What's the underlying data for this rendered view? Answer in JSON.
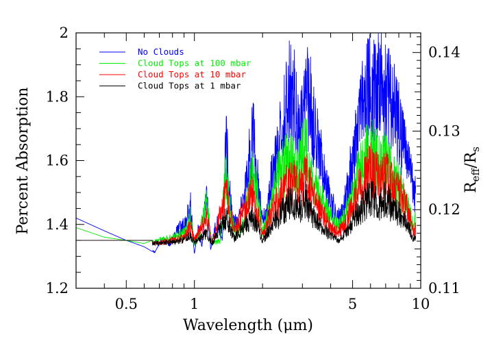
{
  "chart_data": {
    "type": "line",
    "title": "",
    "xlabel": "Wavelength (μm)",
    "ylabel": "Percent Absorption",
    "y2label": {
      "main": "R",
      "sub1": "eff",
      "slash": "/R",
      "sub2": "s"
    },
    "xscale": "log",
    "xlim": [
      0.3,
      10
    ],
    "ylim": [
      1.2,
      2.0
    ],
    "y2lim": [
      0.11,
      0.1425
    ],
    "grid": false,
    "legend_position": "top-left",
    "x_tick_labels": [
      {
        "value": 0.5,
        "label": "0.5"
      },
      {
        "value": 1,
        "label": "1"
      },
      {
        "value": 5,
        "label": "5"
      },
      {
        "value": 10,
        "label": "10"
      }
    ],
    "y_tick_labels": [
      {
        "value": 1.2,
        "label": "1.2"
      },
      {
        "value": 1.4,
        "label": "1.4"
      },
      {
        "value": 1.6,
        "label": "1.6"
      },
      {
        "value": 1.8,
        "label": "1.8"
      },
      {
        "value": 2.0,
        "label": "2"
      }
    ],
    "y2_tick_labels": [
      {
        "value": 0.11,
        "label": "0.11"
      },
      {
        "value": 0.12,
        "label": "0.12"
      },
      {
        "value": 0.13,
        "label": "0.13"
      },
      {
        "value": 0.14,
        "label": "0.14"
      }
    ],
    "series": [
      {
        "name": "No Clouds",
        "color": "#0000ff",
        "x": [
          0.3,
          0.4,
          0.5,
          0.6,
          0.67,
          0.72,
          0.78,
          0.85,
          0.92,
          0.96,
          1.0,
          1.04,
          1.08,
          1.13,
          1.18,
          1.25,
          1.33,
          1.38,
          1.42,
          1.48,
          1.55,
          1.62,
          1.72,
          1.82,
          1.9,
          2.0,
          2.1,
          2.2,
          2.35,
          2.5,
          2.6,
          2.75,
          2.9,
          3.05,
          3.2,
          3.35,
          3.5,
          3.8,
          4.1,
          4.3,
          4.5,
          4.8,
          5.1,
          5.5,
          5.9,
          6.3,
          6.8,
          7.2,
          7.7,
          8.3,
          8.9,
          9.3,
          9.5
        ],
        "y": [
          1.42,
          1.38,
          1.35,
          1.33,
          1.31,
          1.37,
          1.34,
          1.41,
          1.43,
          1.52,
          1.3,
          1.42,
          1.33,
          1.58,
          1.32,
          1.44,
          1.36,
          1.8,
          1.6,
          1.45,
          1.43,
          1.5,
          1.66,
          1.83,
          1.62,
          1.44,
          1.48,
          1.65,
          1.76,
          1.9,
          1.98,
          2.0,
          1.8,
          1.88,
          2.0,
          1.84,
          1.78,
          1.6,
          1.5,
          1.46,
          1.48,
          1.6,
          1.78,
          1.92,
          2.0,
          2.0,
          2.0,
          1.96,
          1.9,
          1.82,
          1.68,
          1.58,
          1.56
        ]
      },
      {
        "name": "Cloud Tops at 100 mbar",
        "color": "#00ee00",
        "x": [
          0.3,
          0.4,
          0.5,
          0.6,
          0.7,
          0.8,
          0.92,
          0.96,
          1.0,
          1.06,
          1.13,
          1.2,
          1.3,
          1.38,
          1.45,
          1.55,
          1.65,
          1.8,
          1.9,
          2.0,
          2.15,
          2.3,
          2.5,
          2.65,
          2.8,
          2.95,
          3.1,
          3.3,
          3.5,
          3.8,
          4.1,
          4.4,
          4.8,
          5.2,
          5.6,
          6.0,
          6.5,
          7.0,
          7.5,
          8.0,
          8.6,
          9.2,
          9.5
        ],
        "y": [
          1.39,
          1.36,
          1.35,
          1.34,
          1.36,
          1.37,
          1.4,
          1.47,
          1.34,
          1.4,
          1.52,
          1.35,
          1.36,
          1.67,
          1.45,
          1.4,
          1.44,
          1.65,
          1.55,
          1.4,
          1.48,
          1.62,
          1.68,
          1.74,
          1.66,
          1.7,
          1.76,
          1.62,
          1.58,
          1.5,
          1.44,
          1.43,
          1.5,
          1.62,
          1.7,
          1.76,
          1.68,
          1.7,
          1.63,
          1.6,
          1.52,
          1.44,
          1.45
        ]
      },
      {
        "name": "Cloud Tops at 10 mbar",
        "color": "#ff0000",
        "x": [
          0.3,
          0.5,
          0.7,
          0.9,
          0.96,
          1.0,
          1.13,
          1.2,
          1.38,
          1.5,
          1.8,
          1.9,
          2.0,
          2.2,
          2.5,
          2.7,
          2.9,
          3.1,
          3.3,
          3.6,
          4.0,
          4.3,
          4.7,
          5.1,
          5.5,
          6.0,
          6.5,
          7.0,
          7.6,
          8.2,
          8.8,
          9.3,
          9.5
        ],
        "y": [
          1.35,
          1.35,
          1.35,
          1.37,
          1.42,
          1.36,
          1.46,
          1.35,
          1.56,
          1.4,
          1.56,
          1.48,
          1.38,
          1.48,
          1.58,
          1.62,
          1.58,
          1.64,
          1.55,
          1.49,
          1.42,
          1.39,
          1.44,
          1.54,
          1.6,
          1.66,
          1.62,
          1.64,
          1.58,
          1.56,
          1.48,
          1.4,
          1.41
        ]
      },
      {
        "name": "Cloud Tops at 1 mbar",
        "color": "#000000",
        "x": [
          0.3,
          0.5,
          0.7,
          0.9,
          0.96,
          1.0,
          1.13,
          1.2,
          1.38,
          1.5,
          1.8,
          1.9,
          2.0,
          2.2,
          2.5,
          2.7,
          2.9,
          3.1,
          3.3,
          3.6,
          4.0,
          4.3,
          4.7,
          5.1,
          5.5,
          6.0,
          6.5,
          7.0,
          7.6,
          8.2,
          8.8,
          9.3,
          9.5
        ],
        "y": [
          1.35,
          1.35,
          1.35,
          1.36,
          1.38,
          1.35,
          1.39,
          1.35,
          1.46,
          1.37,
          1.46,
          1.42,
          1.36,
          1.42,
          1.5,
          1.53,
          1.49,
          1.54,
          1.47,
          1.42,
          1.38,
          1.36,
          1.39,
          1.46,
          1.5,
          1.55,
          1.51,
          1.54,
          1.49,
          1.47,
          1.42,
          1.37,
          1.37
        ]
      }
    ]
  }
}
